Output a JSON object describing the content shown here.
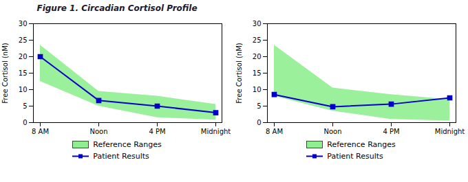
{
  "chart_data": [
    {
      "type": "line",
      "title": "Figure 1.  Circadian Cortisol Profile",
      "ylabel": "Free Cortisol (nM)",
      "categories": [
        "8 AM",
        "Noon",
        "4 PM",
        "Midnight"
      ],
      "series": [
        {
          "name": "Reference Ranges",
          "type": "area",
          "color": "#90ee90",
          "lower": [
            12.5,
            5.0,
            1.5,
            0.8
          ],
          "upper": [
            23.5,
            9.5,
            8.0,
            5.5
          ]
        },
        {
          "name": "Patient Results",
          "type": "line",
          "color": "#0000cc",
          "marker": "square",
          "values": [
            20.0,
            6.7,
            5.0,
            3.0
          ]
        }
      ],
      "ylim": [
        0,
        30
      ],
      "yticks": [
        0,
        5,
        10,
        15,
        20,
        25,
        30
      ],
      "grid": false,
      "legend": "bottom"
    },
    {
      "type": "line",
      "ylabel": "Free Cortisol (nM)",
      "categories": [
        "8 AM",
        "Noon",
        "4 PM",
        "Midnight"
      ],
      "series": [
        {
          "name": "Reference Ranges",
          "type": "area",
          "color": "#90ee90",
          "lower": [
            8.0,
            3.5,
            1.0,
            0.5
          ],
          "upper": [
            23.5,
            10.5,
            8.5,
            7.0
          ]
        },
        {
          "name": "Patient Results",
          "type": "line",
          "color": "#0000cc",
          "marker": "square",
          "values": [
            8.5,
            4.8,
            5.6,
            7.5
          ]
        }
      ],
      "ylim": [
        0,
        30
      ],
      "yticks": [
        0,
        5,
        10,
        15,
        20,
        25,
        30
      ],
      "grid": false,
      "legend": "bottom"
    }
  ]
}
